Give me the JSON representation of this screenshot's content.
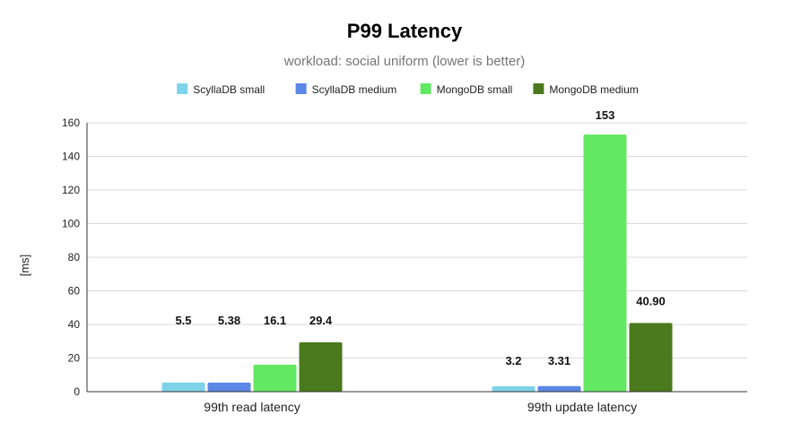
{
  "chart_data": {
    "type": "bar",
    "title": "P99 Latency",
    "subtitle": "workload: social uniform (lower is better)",
    "xlabel": "",
    "ylabel": "[ms]",
    "categories": [
      "99th read latency",
      "99th update latency"
    ],
    "series": [
      {
        "name": "ScyllaDB small",
        "color": "#7dd3e8",
        "values": [
          5.5,
          3.2
        ],
        "labels": [
          "5.5",
          "3.2"
        ]
      },
      {
        "name": "ScyllaDB medium",
        "color": "#5b87e6",
        "values": [
          5.38,
          3.31
        ],
        "labels": [
          "5.38",
          "3.31"
        ]
      },
      {
        "name": "MongoDB small",
        "color": "#62e863",
        "values": [
          16.1,
          153
        ],
        "labels": [
          "16.1",
          "153"
        ]
      },
      {
        "name": "MongoDB medium",
        "color": "#4a7a1d",
        "values": [
          29.4,
          40.9
        ],
        "labels": [
          "29.4",
          "40.90"
        ]
      }
    ],
    "ylim": [
      0,
      160
    ],
    "yticks": [
      0,
      20,
      40,
      60,
      80,
      100,
      120,
      140,
      160
    ],
    "grid": true,
    "legend": "top-center"
  }
}
